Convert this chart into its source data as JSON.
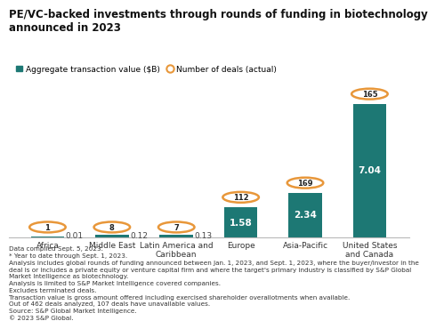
{
  "title": "PE/VC-backed investments through rounds of funding in biotechnology\nannounced in 2023",
  "categories": [
    "Africa",
    "Middle East",
    "Latin America and\nCaribbean",
    "Europe",
    "Asia-Pacific",
    "United States\nand Canada"
  ],
  "bar_values": [
    0.01,
    0.12,
    0.13,
    1.58,
    2.34,
    7.04
  ],
  "deal_counts": [
    1,
    8,
    7,
    112,
    169,
    165
  ],
  "bar_color": "#1d7874",
  "circle_edge_color": "#e8973a",
  "bar_label_color": "#ffffff",
  "bar_label_outside_color": "#444444",
  "legend_bar_label": "Aggregate transaction value ($B)",
  "legend_circle_label": "Number of deals (actual)",
  "ylim": [
    0,
    9.0
  ],
  "footnote_lines": [
    "Data compiled Sept. 5, 2023.",
    "* Year to date through Sept. 1, 2023.",
    "Analysis includes global rounds of funding announced between Jan. 1, 2023, and Sept. 1, 2023, where the buyer/investor in the",
    "deal is or includes a private equity or venture capital firm and where the target's primary industry is classified by S&P Global",
    "Market Intelligence as biotechnology.",
    "Analysis is limited to S&P Market Intelligence covered companies.",
    "Excludes terminated deals.",
    "Transaction value is gross amount offered including exercised shareholder overallotments when available.",
    "Out of 462 deals analyzed, 107 deals have unavailable values.",
    "Source: S&P Global Market Intelligence.",
    "© 2023 S&P Global."
  ],
  "background_color": "#ffffff",
  "title_fontsize": 8.5,
  "footnote_fontsize": 5.2,
  "tick_fontsize": 6.5,
  "legend_fontsize": 6.5
}
